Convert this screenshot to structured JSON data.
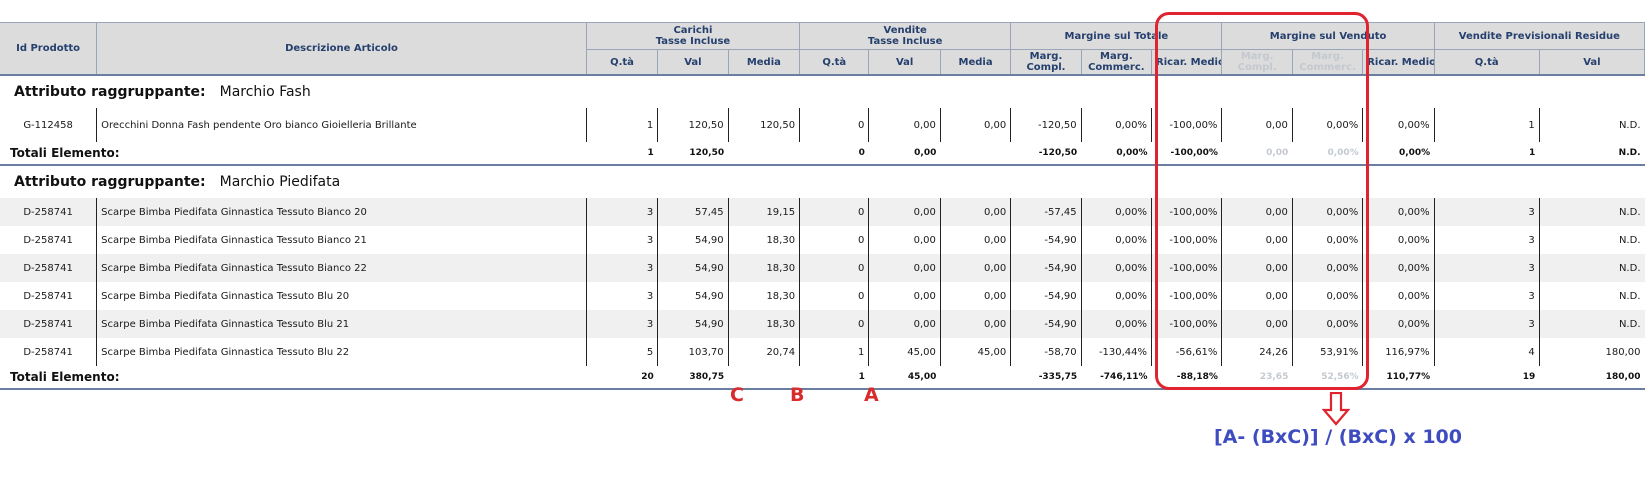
{
  "headers": {
    "id": "Id Prodotto",
    "desc": "Descrizione Articolo",
    "carichi_line1": "Carichi",
    "carichi_line2": "Tasse Incluse",
    "vendite_line1": "Vendite",
    "vendite_line2": "Tasse Incluse",
    "margine_totale": "Margine sul Totale",
    "margine_venduto": "Margine sul Venduto",
    "vendite_prev": "Vendite Previsionali Residue",
    "qta": "Q.tà",
    "val": "Val",
    "media": "Media",
    "marg_compl_1": "Marg.",
    "marg_compl_2": "Compl.",
    "marg_comm_1": "Marg.",
    "marg_comm_2": "Commerc.",
    "ricar_medio": "Ricar. Medio"
  },
  "groups": [
    {
      "label": "Attributo raggruppante:",
      "name": "Marchio Fash",
      "rows": [
        {
          "id": "G-112458",
          "desc": "Orecchini Donna Fash pendente Oro bianco Gioielleria Brillante",
          "c_qta": "1",
          "c_val": "120,50",
          "c_media": "120,50",
          "v_qta": "0",
          "v_val": "0,00",
          "v_media": "0,00",
          "t_compl": "-120,50",
          "t_comm": "0,00%",
          "t_ricar": "-100,00%",
          "s_compl": "0,00",
          "s_comm": "0,00%",
          "s_ricar": "0,00%",
          "p_qta": "1",
          "p_val": "N.D."
        }
      ],
      "total": {
        "label": "Totali Elemento:",
        "c_qta": "1",
        "c_val": "120,50",
        "v_qta": "0",
        "v_val": "0,00",
        "t_compl": "-120,50",
        "t_comm": "0,00%",
        "t_ricar": "-100,00%",
        "s_compl": "0,00",
        "s_comm": "0,00%",
        "s_ricar": "0,00%",
        "p_qta": "1",
        "p_val": "N.D."
      }
    },
    {
      "label": "Attributo raggruppante:",
      "name": "Marchio Piedifata",
      "rows": [
        {
          "id": "D-258741",
          "desc": "Scarpe Bimba Piedifata Ginnastica Tessuto Bianco 20",
          "c_qta": "3",
          "c_val": "57,45",
          "c_media": "19,15",
          "v_qta": "0",
          "v_val": "0,00",
          "v_media": "0,00",
          "t_compl": "-57,45",
          "t_comm": "0,00%",
          "t_ricar": "-100,00%",
          "s_compl": "0,00",
          "s_comm": "0,00%",
          "s_ricar": "0,00%",
          "p_qta": "3",
          "p_val": "N.D."
        },
        {
          "id": "D-258741",
          "desc": "Scarpe Bimba Piedifata Ginnastica Tessuto Bianco 21",
          "c_qta": "3",
          "c_val": "54,90",
          "c_media": "18,30",
          "v_qta": "0",
          "v_val": "0,00",
          "v_media": "0,00",
          "t_compl": "-54,90",
          "t_comm": "0,00%",
          "t_ricar": "-100,00%",
          "s_compl": "0,00",
          "s_comm": "0,00%",
          "s_ricar": "0,00%",
          "p_qta": "3",
          "p_val": "N.D."
        },
        {
          "id": "D-258741",
          "desc": "Scarpe Bimba Piedifata Ginnastica Tessuto Bianco 22",
          "c_qta": "3",
          "c_val": "54,90",
          "c_media": "18,30",
          "v_qta": "0",
          "v_val": "0,00",
          "v_media": "0,00",
          "t_compl": "-54,90",
          "t_comm": "0,00%",
          "t_ricar": "-100,00%",
          "s_compl": "0,00",
          "s_comm": "0,00%",
          "s_ricar": "0,00%",
          "p_qta": "3",
          "p_val": "N.D."
        },
        {
          "id": "D-258741",
          "desc": "Scarpe Bimba Piedifata Ginnastica Tessuto Blu 20",
          "c_qta": "3",
          "c_val": "54,90",
          "c_media": "18,30",
          "v_qta": "0",
          "v_val": "0,00",
          "v_media": "0,00",
          "t_compl": "-54,90",
          "t_comm": "0,00%",
          "t_ricar": "-100,00%",
          "s_compl": "0,00",
          "s_comm": "0,00%",
          "s_ricar": "0,00%",
          "p_qta": "3",
          "p_val": "N.D."
        },
        {
          "id": "D-258741",
          "desc": "Scarpe Bimba Piedifata Ginnastica Tessuto Blu 21",
          "c_qta": "3",
          "c_val": "54,90",
          "c_media": "18,30",
          "v_qta": "0",
          "v_val": "0,00",
          "v_media": "0,00",
          "t_compl": "-54,90",
          "t_comm": "0,00%",
          "t_ricar": "-100,00%",
          "s_compl": "0,00",
          "s_comm": "0,00%",
          "s_ricar": "0,00%",
          "p_qta": "3",
          "p_val": "N.D."
        },
        {
          "id": "D-258741",
          "desc": "Scarpe Bimba Piedifata Ginnastica Tessuto Blu 22",
          "c_qta": "5",
          "c_val": "103,70",
          "c_media": "20,74",
          "v_qta": "1",
          "v_val": "45,00",
          "v_media": "45,00",
          "t_compl": "-58,70",
          "t_comm": "-130,44%",
          "t_ricar": "-56,61%",
          "s_compl": "24,26",
          "s_comm": "53,91%",
          "s_ricar": "116,97%",
          "p_qta": "4",
          "p_val": "180,00"
        }
      ],
      "total": {
        "label": "Totali Elemento:",
        "c_qta": "20",
        "c_val": "380,75",
        "v_qta": "1",
        "v_val": "45,00",
        "t_compl": "-335,75",
        "t_comm": "-746,11%",
        "t_ricar": "-88,18%",
        "s_compl": "23,65",
        "s_comm": "52,56%",
        "s_ricar": "110,77%",
        "p_qta": "19",
        "p_val": "180,00"
      }
    }
  ],
  "annotation": {
    "letter_c": "C",
    "letter_b": "B",
    "letter_a": "A",
    "formula": "[A- (BxC)] / (BxC) x 100",
    "highlight_color": "#e0232e",
    "formula_color": "#3e4cc0"
  }
}
